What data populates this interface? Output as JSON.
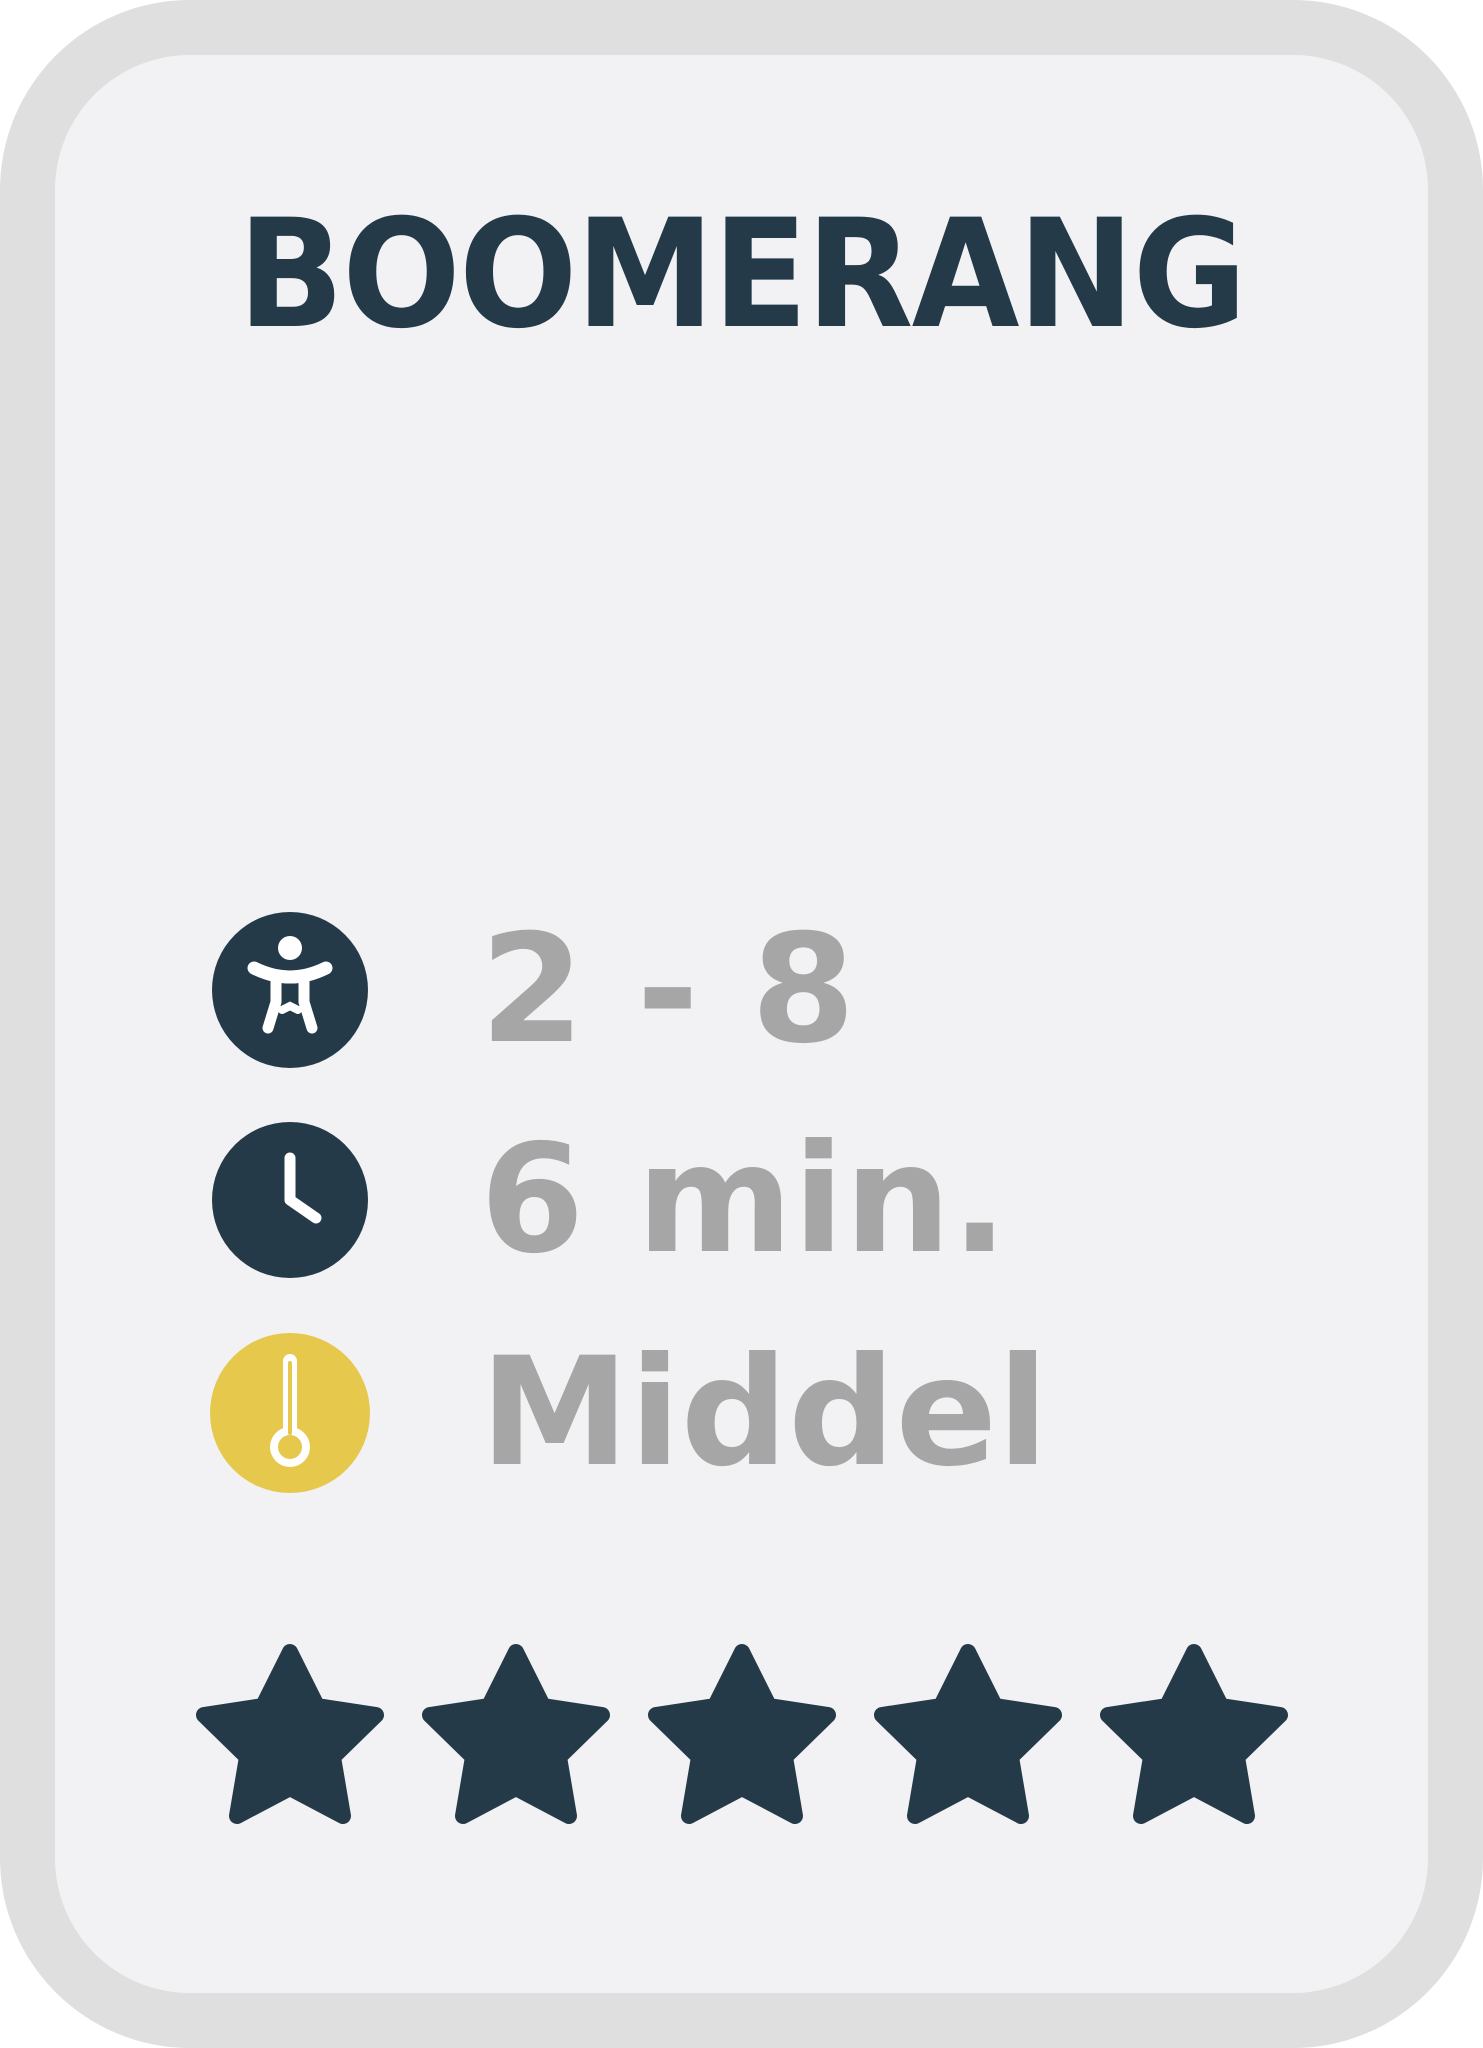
{
  "card": {
    "title": "BOOMERANG"
  },
  "stats": {
    "players": {
      "value": "2 - 8",
      "icon": "person-icon",
      "icon_color": "#253a48"
    },
    "duration": {
      "value": "6 min.",
      "icon": "clock-icon",
      "icon_color": "#253a48"
    },
    "difficulty": {
      "value": "Middel",
      "icon": "thermometer-icon",
      "icon_color": "#e5c84c"
    }
  },
  "rating": {
    "filled": 5,
    "max": 5,
    "color": "#253a48"
  },
  "colors": {
    "title": "#253a48",
    "value_text": "#a6a6a6",
    "card_border": "#dfdfdf",
    "card_background": "#f2f2f4"
  }
}
